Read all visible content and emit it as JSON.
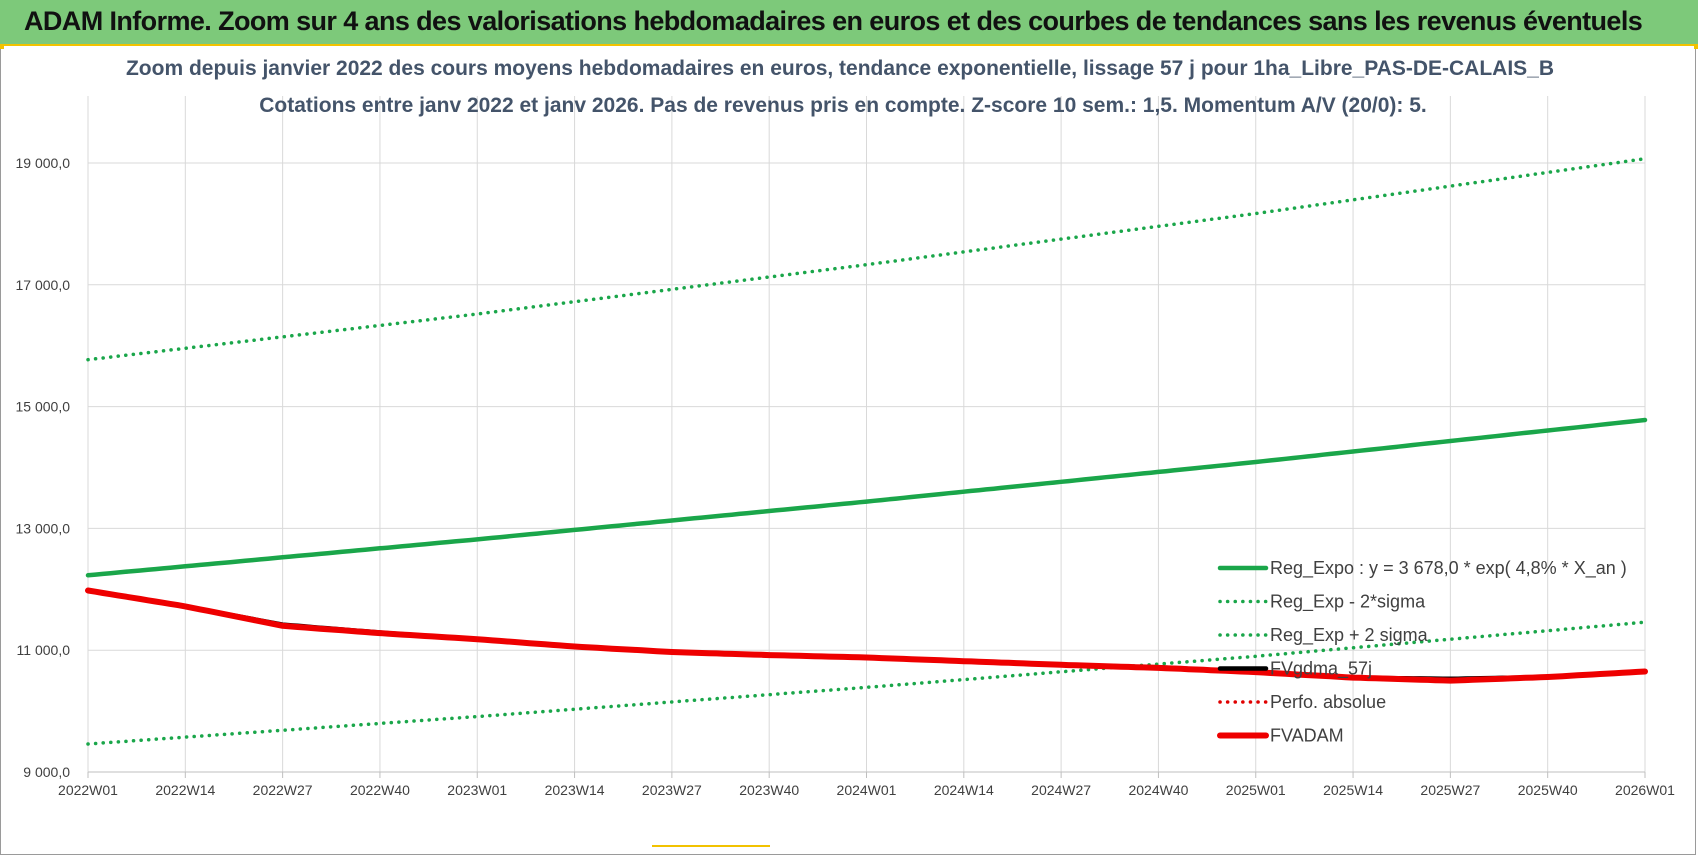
{
  "banner": {
    "title": "ADAM Informe. Zoom sur 4 ans des valorisations hebdomadaires en euros et des courbes de tendances sans les revenus éventuels"
  },
  "chart_data": {
    "type": "line",
    "title": [
      "Zoom depuis janvier 2022 des cours moyens hebdomadaires en euros, tendance exponentielle, lissage 57 j pour 1ha_Libre_PAS-DE-CALAIS_B",
      "Cotations entre janv 2022 et janv 2026. Pas de revenus pris en compte. Z-score 10 sem.: 1,5. Momentum A/V (20/0): 5."
    ],
    "xlabel": "",
    "ylabel": "",
    "ylim": [
      9000,
      19800
    ],
    "yticks": [
      9000,
      11000,
      13000,
      15000,
      17000,
      19000
    ],
    "ytick_labels": [
      "9 000,0",
      "11 000,0",
      "13 000,0",
      "15 000,0",
      "17 000,0",
      "19 000,0"
    ],
    "x_points": 209,
    "xticks": [
      0,
      13,
      26,
      39,
      52,
      65,
      78,
      91,
      104,
      117,
      130,
      143,
      156,
      169,
      182,
      195,
      208
    ],
    "xtick_labels": [
      "2022W01",
      "2022W14",
      "2022W27",
      "2022W40",
      "2023W01",
      "2023W14",
      "2023W27",
      "2023W40",
      "2024W01",
      "2024W14",
      "2024W27",
      "2024W40",
      "2025W01",
      "2025W14",
      "2025W27",
      "2025W40",
      "2026W01"
    ],
    "series": [
      {
        "name": "Reg_Expo : y = 3 678,0 * exp( 4,8% *  X_an )",
        "style": "solid-thick",
        "color": "#1aa64a",
        "anchors": [
          [
            0,
            12230
          ],
          [
            52,
            12820
          ],
          [
            104,
            13440
          ],
          [
            156,
            14090
          ],
          [
            208,
            14780
          ]
        ]
      },
      {
        "name": "Reg_Exp - 2*sigma",
        "style": "dotted",
        "color": "#1aa64a",
        "anchors": [
          [
            0,
            9460
          ],
          [
            52,
            9910
          ],
          [
            104,
            10390
          ],
          [
            156,
            10900
          ],
          [
            208,
            11460
          ]
        ]
      },
      {
        "name": "Reg_Exp + 2 sigma",
        "style": "dotted",
        "color": "#1aa64a",
        "anchors": [
          [
            0,
            15770
          ],
          [
            52,
            16520
          ],
          [
            104,
            17330
          ],
          [
            156,
            18170
          ],
          [
            208,
            19070
          ]
        ]
      },
      {
        "name": "FVgdma_57j",
        "style": "solid-thick",
        "color": "#000000",
        "anchors": [
          [
            0,
            11980
          ],
          [
            13,
            11720
          ],
          [
            26,
            11420
          ],
          [
            39,
            11290
          ],
          [
            52,
            11180
          ],
          [
            65,
            11060
          ],
          [
            78,
            10970
          ],
          [
            91,
            10920
          ],
          [
            104,
            10880
          ],
          [
            117,
            10820
          ],
          [
            130,
            10760
          ],
          [
            143,
            10720
          ],
          [
            156,
            10640
          ],
          [
            169,
            10550
          ],
          [
            182,
            10530
          ],
          [
            195,
            10560
          ],
          [
            208,
            10650
          ]
        ]
      },
      {
        "name": "Perfo. absolue",
        "style": "dotted",
        "color": "#e00000",
        "anchors": []
      },
      {
        "name": "FVADAM",
        "style": "solid-thicker",
        "color": "#ee0000",
        "anchors": [
          [
            0,
            11980
          ],
          [
            13,
            11720
          ],
          [
            26,
            11400
          ],
          [
            39,
            11280
          ],
          [
            52,
            11180
          ],
          [
            65,
            11060
          ],
          [
            78,
            10970
          ],
          [
            91,
            10920
          ],
          [
            104,
            10880
          ],
          [
            117,
            10820
          ],
          [
            130,
            10760
          ],
          [
            143,
            10710
          ],
          [
            156,
            10640
          ],
          [
            169,
            10550
          ],
          [
            182,
            10500
          ],
          [
            195,
            10560
          ],
          [
            208,
            10650
          ]
        ]
      }
    ],
    "legend_position": "right-lower-middle",
    "grid": true
  }
}
